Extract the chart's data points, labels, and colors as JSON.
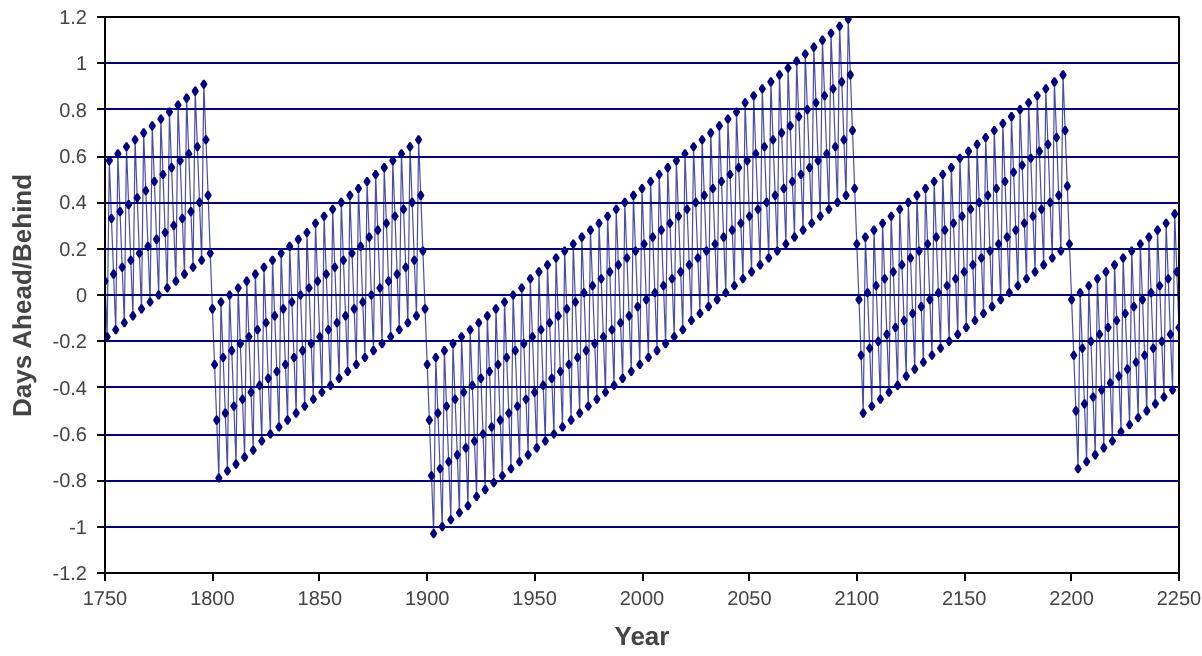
{
  "chart_data": {
    "type": "line",
    "xlabel": "Year",
    "ylabel": "Days Ahead/Behind",
    "xlim": [
      1750,
      2250
    ],
    "xticks": [
      1750,
      1800,
      1850,
      1900,
      1950,
      2000,
      2050,
      2100,
      2150,
      2200,
      2250
    ],
    "ylim": [
      -1.2,
      1.2
    ],
    "yticks": [
      -1.2,
      -1,
      -0.8,
      -0.6,
      -0.4,
      -0.2,
      0,
      0.2,
      0.4,
      0.6,
      0.8,
      1,
      1.2
    ],
    "grid": "y",
    "marker": "diamond",
    "line_style": "solid",
    "x": [
      1750,
      1751,
      1752,
      1753,
      1754,
      1755,
      1756,
      1757,
      1758,
      1759,
      1760,
      1761,
      1762,
      1763,
      1764,
      1765,
      1766,
      1767,
      1768,
      1769,
      1770,
      1771,
      1772,
      1773,
      1774,
      1775,
      1776,
      1777,
      1778,
      1779,
      1780,
      1781,
      1782,
      1783,
      1784,
      1785,
      1786,
      1787,
      1788,
      1789,
      1790,
      1791,
      1792,
      1793,
      1794,
      1795,
      1796,
      1797,
      1798,
      1799,
      1800,
      1801,
      1802,
      1803,
      1804,
      1805,
      1806,
      1807,
      1808,
      1809,
      1810,
      1811,
      1812,
      1813,
      1814,
      1815,
      1816,
      1817,
      1818,
      1819,
      1820,
      1821,
      1822,
      1823,
      1824,
      1825,
      1826,
      1827,
      1828,
      1829,
      1830,
      1831,
      1832,
      1833,
      1834,
      1835,
      1836,
      1837,
      1838,
      1839,
      1840,
      1841,
      1842,
      1843,
      1844,
      1845,
      1846,
      1847,
      1848,
      1849,
      1850,
      1851,
      1852,
      1853,
      1854,
      1855,
      1856,
      1857,
      1858,
      1859,
      1860,
      1861,
      1862,
      1863,
      1864,
      1865,
      1866,
      1867,
      1868,
      1869,
      1870,
      1871,
      1872,
      1873,
      1874,
      1875,
      1876,
      1877,
      1878,
      1879,
      1880,
      1881,
      1882,
      1883,
      1884,
      1885,
      1886,
      1887,
      1888,
      1889,
      1890,
      1891,
      1892,
      1893,
      1894,
      1895,
      1896,
      1897,
      1898,
      1899,
      1900,
      1901,
      1902,
      1903,
      1904,
      1905,
      1906,
      1907,
      1908,
      1909,
      1910,
      1911,
      1912,
      1913,
      1914,
      1915,
      1916,
      1917,
      1918,
      1919,
      1920,
      1921,
      1922,
      1923,
      1924,
      1925,
      1926,
      1927,
      1928,
      1929,
      1930,
      1931,
      1932,
      1933,
      1934,
      1935,
      1936,
      1937,
      1938,
      1939,
      1940,
      1941,
      1942,
      1943,
      1944,
      1945,
      1946,
      1947,
      1948,
      1949,
      1950,
      1951,
      1952,
      1953,
      1954,
      1955,
      1956,
      1957,
      1958,
      1959,
      1960,
      1961,
      1962,
      1963,
      1964,
      1965,
      1966,
      1967,
      1968,
      1969,
      1970,
      1971,
      1972,
      1973,
      1974,
      1975,
      1976,
      1977,
      1978,
      1979,
      1980,
      1981,
      1982,
      1983,
      1984,
      1985,
      1986,
      1987,
      1988,
      1989,
      1990,
      1991,
      1992,
      1993,
      1994,
      1995,
      1996,
      1997,
      1998,
      1999,
      2000,
      2001,
      2002,
      2003,
      2004,
      2005,
      2006,
      2007,
      2008,
      2009,
      2010,
      2011,
      2012,
      2013,
      2014,
      2015,
      2016,
      2017,
      2018,
      2019,
      2020,
      2021,
      2022,
      2023,
      2024,
      2025,
      2026,
      2027,
      2028,
      2029,
      2030,
      2031,
      2032,
      2033,
      2034,
      2035,
      2036,
      2037,
      2038,
      2039,
      2040,
      2041,
      2042,
      2043,
      2044,
      2045,
      2046,
      2047,
      2048,
      2049,
      2050,
      2051,
      2052,
      2053,
      2054,
      2055,
      2056,
      2057,
      2058,
      2059,
      2060,
      2061,
      2062,
      2063,
      2064,
      2065,
      2066,
      2067,
      2068,
      2069,
      2070,
      2071,
      2072,
      2073,
      2074,
      2075,
      2076,
      2077,
      2078,
      2079,
      2080,
      2081,
      2082,
      2083,
      2084,
      2085,
      2086,
      2087,
      2088,
      2089,
      2090,
      2091,
      2092,
      2093,
      2094,
      2095,
      2096,
      2097,
      2098,
      2099,
      2100,
      2101,
      2102,
      2103,
      2104,
      2105,
      2106,
      2107,
      2108,
      2109,
      2110,
      2111,
      2112,
      2113,
      2114,
      2115,
      2116,
      2117,
      2118,
      2119,
      2120,
      2121,
      2122,
      2123,
      2124,
      2125,
      2126,
      2127,
      2128,
      2129,
      2130,
      2131,
      2132,
      2133,
      2134,
      2135,
      2136,
      2137,
      2138,
      2139,
      2140,
      2141,
      2142,
      2143,
      2144,
      2145,
      2146,
      2147,
      2148,
      2149,
      2150,
      2151,
      2152,
      2153,
      2154,
      2155,
      2156,
      2157,
      2158,
      2159,
      2160,
      2161,
      2162,
      2163,
      2164,
      2165,
      2166,
      2167,
      2168,
      2169,
      2170,
      2171,
      2172,
      2173,
      2174,
      2175,
      2176,
      2177,
      2178,
      2179,
      2180,
      2181,
      2182,
      2183,
      2184,
      2185,
      2186,
      2187,
      2188,
      2189,
      2190,
      2191,
      2192,
      2193,
      2194,
      2195,
      2196,
      2197,
      2198,
      2199,
      2200,
      2201,
      2202,
      2203,
      2204,
      2205,
      2206,
      2207,
      2208,
      2209,
      2210,
      2211,
      2212,
      2213,
      2214,
      2215,
      2216,
      2217,
      2218,
      2219,
      2220,
      2221,
      2222,
      2223,
      2224,
      2225,
      2226,
      2227,
      2228,
      2229,
      2230,
      2231,
      2232,
      2233,
      2234,
      2235,
      2236,
      2237,
      2238,
      2239,
      2240,
      2241,
      2242,
      2243,
      2244,
      2245,
      2246,
      2247,
      2248,
      2249,
      2250
    ],
    "series": [
      {
        "color": "#000080",
        "values": [
          0.06,
          -0.18,
          0.58,
          0.33,
          0.09,
          -0.15,
          0.61,
          0.36,
          0.12,
          -0.12,
          0.64,
          0.39,
          0.15,
          -0.09,
          0.67,
          0.42,
          0.18,
          -0.06,
          0.7,
          0.45,
          0.21,
          -0.03,
          0.73,
          0.49,
          0.24,
          0.0,
          0.76,
          0.52,
          0.27,
          0.03,
          0.79,
          0.55,
          0.3,
          0.06,
          0.82,
          0.58,
          0.33,
          0.09,
          0.85,
          0.61,
          0.36,
          0.12,
          0.88,
          0.64,
          0.4,
          0.15,
          0.91,
          0.67,
          0.43,
          0.18,
          -0.06,
          -0.3,
          -0.54,
          -0.79,
          -0.03,
          -0.27,
          -0.51,
          -0.76,
          0.0,
          -0.24,
          -0.48,
          -0.73,
          0.03,
          -0.21,
          -0.45,
          -0.7,
          0.06,
          -0.18,
          -0.42,
          -0.67,
          0.09,
          -0.15,
          -0.39,
          -0.63,
          0.12,
          -0.12,
          -0.36,
          -0.6,
          0.15,
          -0.09,
          -0.33,
          -0.57,
          0.18,
          -0.06,
          -0.3,
          -0.54,
          0.21,
          -0.03,
          -0.27,
          -0.51,
          0.24,
          0.0,
          -0.24,
          -0.48,
          0.27,
          0.03,
          -0.21,
          -0.45,
          0.31,
          0.06,
          -0.18,
          -0.42,
          0.34,
          0.09,
          -0.15,
          -0.39,
          0.37,
          0.12,
          -0.12,
          -0.36,
          0.4,
          0.15,
          -0.09,
          -0.33,
          0.43,
          0.18,
          -0.06,
          -0.3,
          0.46,
          0.21,
          -0.03,
          -0.27,
          0.49,
          0.25,
          0.0,
          -0.24,
          0.52,
          0.28,
          0.03,
          -0.21,
          0.55,
          0.31,
          0.06,
          -0.18,
          0.58,
          0.34,
          0.09,
          -0.15,
          0.61,
          0.37,
          0.12,
          -0.12,
          0.64,
          0.4,
          0.15,
          -0.09,
          0.67,
          0.43,
          0.19,
          -0.06,
          -0.3,
          -0.54,
          -0.78,
          -1.03,
          -0.27,
          -0.51,
          -0.75,
          -1.0,
          -0.24,
          -0.48,
          -0.72,
          -0.97,
          -0.21,
          -0.45,
          -0.69,
          -0.94,
          -0.18,
          -0.42,
          -0.66,
          -0.91,
          -0.15,
          -0.39,
          -0.63,
          -0.87,
          -0.12,
          -0.36,
          -0.6,
          -0.84,
          -0.09,
          -0.33,
          -0.57,
          -0.81,
          -0.06,
          -0.3,
          -0.54,
          -0.78,
          -0.03,
          -0.27,
          -0.51,
          -0.75,
          0.0,
          -0.24,
          -0.48,
          -0.72,
          0.03,
          -0.21,
          -0.45,
          -0.69,
          0.07,
          -0.18,
          -0.42,
          -0.66,
          0.1,
          -0.15,
          -0.39,
          -0.63,
          0.13,
          -0.12,
          -0.36,
          -0.6,
          0.16,
          -0.09,
          -0.33,
          -0.57,
          0.19,
          -0.06,
          -0.3,
          -0.54,
          0.22,
          -0.03,
          -0.27,
          -0.51,
          0.25,
          0.01,
          -0.24,
          -0.48,
          0.28,
          0.04,
          -0.21,
          -0.45,
          0.31,
          0.07,
          -0.18,
          -0.42,
          0.34,
          0.1,
          -0.15,
          -0.39,
          0.37,
          0.13,
          -0.12,
          -0.36,
          0.4,
          0.16,
          -0.09,
          -0.33,
          0.43,
          0.19,
          -0.05,
          -0.3,
          0.46,
          0.22,
          -0.02,
          -0.27,
          0.49,
          0.25,
          0.01,
          -0.24,
          0.52,
          0.28,
          0.04,
          -0.21,
          0.55,
          0.31,
          0.07,
          -0.18,
          0.58,
          0.34,
          0.1,
          -0.15,
          0.61,
          0.37,
          0.13,
          -0.11,
          0.64,
          0.4,
          0.16,
          -0.08,
          0.67,
          0.43,
          0.19,
          -0.05,
          0.7,
          0.46,
          0.22,
          -0.02,
          0.73,
          0.49,
          0.25,
          0.01,
          0.76,
          0.52,
          0.28,
          0.04,
          0.79,
          0.55,
          0.31,
          0.07,
          0.83,
          0.58,
          0.34,
          0.1,
          0.86,
          0.61,
          0.37,
          0.13,
          0.89,
          0.64,
          0.4,
          0.16,
          0.92,
          0.67,
          0.43,
          0.19,
          0.95,
          0.7,
          0.46,
          0.22,
          0.98,
          0.73,
          0.49,
          0.25,
          1.01,
          0.77,
          0.52,
          0.28,
          1.04,
          0.8,
          0.55,
          0.31,
          1.07,
          0.83,
          0.58,
          0.34,
          1.1,
          0.86,
          0.61,
          0.37,
          1.13,
          0.89,
          0.64,
          0.4,
          1.16,
          0.92,
          0.67,
          0.43,
          1.19,
          0.95,
          0.71,
          0.46,
          0.22,
          -0.02,
          -0.26,
          -0.51,
          0.25,
          0.01,
          -0.23,
          -0.48,
          0.28,
          0.04,
          -0.2,
          -0.45,
          0.31,
          0.07,
          -0.17,
          -0.42,
          0.34,
          0.1,
          -0.14,
          -0.39,
          0.37,
          0.13,
          -0.11,
          -0.35,
          0.4,
          0.16,
          -0.08,
          -0.32,
          0.43,
          0.19,
          -0.05,
          -0.29,
          0.46,
          0.22,
          -0.02,
          -0.26,
          0.49,
          0.25,
          0.01,
          -0.23,
          0.52,
          0.28,
          0.04,
          -0.2,
          0.55,
          0.31,
          0.07,
          -0.17,
          0.59,
          0.34,
          0.1,
          -0.14,
          0.62,
          0.37,
          0.13,
          -0.11,
          0.65,
          0.4,
          0.16,
          -0.08,
          0.68,
          0.43,
          0.19,
          -0.05,
          0.71,
          0.46,
          0.22,
          -0.02,
          0.74,
          0.49,
          0.25,
          0.01,
          0.77,
          0.53,
          0.28,
          0.04,
          0.8,
          0.56,
          0.31,
          0.07,
          0.83,
          0.59,
          0.34,
          0.1,
          0.86,
          0.62,
          0.37,
          0.13,
          0.89,
          0.65,
          0.4,
          0.16,
          0.92,
          0.68,
          0.43,
          0.19,
          0.95,
          0.71,
          0.47,
          0.22,
          -0.02,
          -0.26,
          -0.5,
          -0.75,
          0.01,
          -0.23,
          -0.47,
          -0.72,
          0.04,
          -0.2,
          -0.44,
          -0.69,
          0.07,
          -0.17,
          -0.41,
          -0.66,
          0.1,
          -0.14,
          -0.38,
          -0.63,
          0.13,
          -0.11,
          -0.35,
          -0.59,
          0.16,
          -0.08,
          -0.32,
          -0.56,
          0.19,
          -0.05,
          -0.29,
          -0.53,
          0.22,
          -0.02,
          -0.26,
          -0.5,
          0.25,
          0.01,
          -0.23,
          -0.47,
          0.28,
          0.04,
          -0.2,
          -0.44,
          0.31,
          0.07,
          -0.17,
          -0.41,
          0.35,
          0.1,
          -0.14
        ]
      }
    ]
  }
}
